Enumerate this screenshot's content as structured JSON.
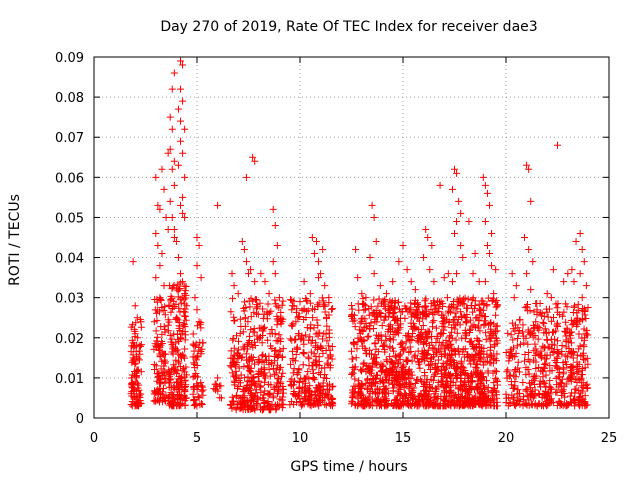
{
  "chart_data": {
    "type": "scatter",
    "title": "Day 270 of 2019, Rate Of TEC Index for receiver dae3",
    "xlabel": "GPS time / hours",
    "ylabel": "ROTI / TECUs",
    "xlim": [
      0,
      25
    ],
    "ylim": [
      0,
      0.09
    ],
    "x_ticks": [
      0,
      5,
      10,
      15,
      20,
      25
    ],
    "y_ticks": [
      0,
      0.01,
      0.02,
      0.03,
      0.04,
      0.05,
      0.06,
      0.07,
      0.08,
      0.09
    ],
    "x_tick_labels": [
      "0",
      "5",
      "10",
      "15",
      "20",
      "25"
    ],
    "y_tick_labels": [
      "0",
      "0.01",
      "0.02",
      "0.03",
      "0.04",
      "0.05",
      "0.06",
      "0.07",
      "0.08",
      "0.09"
    ],
    "grid": true,
    "marker": "+",
    "series_color": "#ff0000",
    "series": [
      {
        "name": "ROTI",
        "points": [
          [
            1.9,
            0.039
          ],
          [
            2.0,
            0.028
          ],
          [
            2.1,
            0.025
          ],
          [
            2.0,
            0.021
          ],
          [
            2.2,
            0.018
          ],
          [
            1.9,
            0.015
          ],
          [
            2.1,
            0.012
          ],
          [
            2.0,
            0.009
          ],
          [
            2.2,
            0.006
          ],
          [
            2.1,
            0.004
          ],
          [
            3.0,
            0.06
          ],
          [
            3.1,
            0.053
          ],
          [
            3.2,
            0.052
          ],
          [
            3.0,
            0.046
          ],
          [
            3.1,
            0.043
          ],
          [
            3.3,
            0.041
          ],
          [
            3.2,
            0.038
          ],
          [
            3.0,
            0.035
          ],
          [
            3.4,
            0.033
          ],
          [
            3.2,
            0.03
          ],
          [
            3.5,
            0.05
          ],
          [
            3.6,
            0.047
          ],
          [
            3.3,
            0.062
          ],
          [
            3.4,
            0.057
          ],
          [
            3.6,
            0.066
          ],
          [
            3.8,
            0.082
          ],
          [
            3.9,
            0.086
          ],
          [
            3.7,
            0.075
          ],
          [
            3.8,
            0.072
          ],
          [
            3.7,
            0.067
          ],
          [
            3.9,
            0.064
          ],
          [
            3.8,
            0.062
          ],
          [
            3.9,
            0.058
          ],
          [
            3.7,
            0.054
          ],
          [
            3.8,
            0.05
          ],
          [
            3.9,
            0.047
          ],
          [
            3.9,
            0.045
          ],
          [
            4.2,
            0.089
          ],
          [
            4.3,
            0.088
          ],
          [
            4.2,
            0.082
          ],
          [
            4.3,
            0.079
          ],
          [
            4.1,
            0.077
          ],
          [
            4.2,
            0.074
          ],
          [
            4.4,
            0.072
          ],
          [
            4.2,
            0.069
          ],
          [
            4.3,
            0.066
          ],
          [
            4.1,
            0.063
          ],
          [
            4.4,
            0.06
          ],
          [
            4.3,
            0.055
          ],
          [
            4.2,
            0.053
          ],
          [
            4.3,
            0.051
          ],
          [
            4.4,
            0.05
          ],
          [
            4.0,
            0.044
          ],
          [
            4.1,
            0.04
          ],
          [
            4.2,
            0.036
          ],
          [
            4.3,
            0.034
          ],
          [
            4.4,
            0.031
          ],
          [
            4.5,
            0.028
          ],
          [
            4.0,
            0.025
          ],
          [
            5.0,
            0.045
          ],
          [
            5.1,
            0.043
          ],
          [
            5.0,
            0.038
          ],
          [
            5.2,
            0.035
          ],
          [
            4.9,
            0.03
          ],
          [
            5.0,
            0.027
          ],
          [
            5.1,
            0.024
          ],
          [
            6.0,
            0.053
          ],
          [
            6.0,
            0.01
          ],
          [
            6.1,
            0.008
          ],
          [
            5.9,
            0.007
          ],
          [
            6.7,
            0.036
          ],
          [
            6.8,
            0.033
          ],
          [
            7.0,
            0.031
          ],
          [
            7.2,
            0.044
          ],
          [
            7.3,
            0.042
          ],
          [
            7.4,
            0.039
          ],
          [
            7.5,
            0.036
          ],
          [
            7.4,
            0.06
          ],
          [
            7.7,
            0.065
          ],
          [
            7.8,
            0.064
          ],
          [
            7.6,
            0.037
          ],
          [
            7.8,
            0.034
          ],
          [
            8.1,
            0.036
          ],
          [
            8.3,
            0.034
          ],
          [
            8.5,
            0.031
          ],
          [
            8.7,
            0.052
          ],
          [
            8.8,
            0.048
          ],
          [
            8.9,
            0.043
          ],
          [
            8.7,
            0.039
          ],
          [
            8.8,
            0.036
          ],
          [
            9.0,
            0.03
          ],
          [
            9.6,
            0.027
          ],
          [
            9.8,
            0.024
          ],
          [
            10.0,
            0.029
          ],
          [
            10.2,
            0.034
          ],
          [
            10.5,
            0.031
          ],
          [
            10.6,
            0.045
          ],
          [
            10.8,
            0.044
          ],
          [
            10.7,
            0.041
          ],
          [
            10.9,
            0.039
          ],
          [
            11.0,
            0.036
          ],
          [
            11.2,
            0.033
          ],
          [
            11.4,
            0.03
          ],
          [
            11.1,
            0.042
          ],
          [
            10.9,
            0.035
          ],
          [
            12.7,
            0.042
          ],
          [
            12.8,
            0.035
          ],
          [
            13.0,
            0.031
          ],
          [
            13.2,
            0.03
          ],
          [
            13.5,
            0.053
          ],
          [
            13.6,
            0.05
          ],
          [
            13.7,
            0.044
          ],
          [
            13.4,
            0.04
          ],
          [
            13.6,
            0.036
          ],
          [
            13.9,
            0.033
          ],
          [
            14.2,
            0.031
          ],
          [
            14.5,
            0.034
          ],
          [
            14.8,
            0.039
          ],
          [
            15.0,
            0.043
          ],
          [
            15.2,
            0.037
          ],
          [
            15.4,
            0.034
          ],
          [
            15.6,
            0.032
          ],
          [
            16.1,
            0.047
          ],
          [
            16.2,
            0.045
          ],
          [
            16.4,
            0.043
          ],
          [
            16.0,
            0.04
          ],
          [
            16.3,
            0.037
          ],
          [
            16.5,
            0.034
          ],
          [
            16.8,
            0.058
          ],
          [
            17.0,
            0.035
          ],
          [
            17.2,
            0.036
          ],
          [
            17.4,
            0.034
          ],
          [
            17.5,
            0.062
          ],
          [
            17.6,
            0.061
          ],
          [
            17.4,
            0.057
          ],
          [
            17.7,
            0.054
          ],
          [
            17.8,
            0.051
          ],
          [
            17.6,
            0.049
          ],
          [
            17.5,
            0.046
          ],
          [
            17.8,
            0.043
          ],
          [
            17.9,
            0.04
          ],
          [
            17.6,
            0.036
          ],
          [
            18.2,
            0.049
          ],
          [
            18.5,
            0.041
          ],
          [
            18.4,
            0.036
          ],
          [
            18.7,
            0.034
          ],
          [
            18.9,
            0.06
          ],
          [
            19.0,
            0.058
          ],
          [
            19.1,
            0.056
          ],
          [
            19.2,
            0.053
          ],
          [
            19.0,
            0.049
          ],
          [
            19.3,
            0.046
          ],
          [
            19.1,
            0.043
          ],
          [
            19.2,
            0.041
          ],
          [
            19.3,
            0.038
          ],
          [
            19.0,
            0.034
          ],
          [
            19.4,
            0.031
          ],
          [
            19.5,
            0.037
          ],
          [
            20.3,
            0.036
          ],
          [
            20.5,
            0.033
          ],
          [
            20.4,
            0.03
          ],
          [
            21.0,
            0.063
          ],
          [
            21.1,
            0.062
          ],
          [
            21.2,
            0.054
          ],
          [
            20.9,
            0.045
          ],
          [
            21.1,
            0.042
          ],
          [
            21.3,
            0.039
          ],
          [
            21.0,
            0.036
          ],
          [
            21.2,
            0.032
          ],
          [
            22.3,
            0.037
          ],
          [
            22.5,
            0.068
          ],
          [
            22.0,
            0.031
          ],
          [
            22.2,
            0.03
          ],
          [
            22.8,
            0.034
          ],
          [
            23.0,
            0.036
          ],
          [
            23.2,
            0.037
          ],
          [
            23.3,
            0.034
          ],
          [
            23.4,
            0.044
          ],
          [
            23.6,
            0.046
          ],
          [
            23.7,
            0.042
          ],
          [
            23.8,
            0.039
          ],
          [
            23.6,
            0.036
          ],
          [
            23.9,
            0.033
          ],
          [
            23.7,
            0.03
          ]
        ],
        "clusters": [
          {
            "x_range": [
              1.8,
              2.3
            ],
            "y_range": [
              0.003,
              0.026
            ],
            "count": 90
          },
          {
            "x_range": [
              2.9,
              3.5
            ],
            "y_range": [
              0.004,
              0.03
            ],
            "count": 100
          },
          {
            "x_range": [
              3.6,
              4.5
            ],
            "y_range": [
              0.003,
              0.034
            ],
            "count": 200
          },
          {
            "x_range": [
              4.8,
              5.3
            ],
            "y_range": [
              0.003,
              0.024
            ],
            "count": 60
          },
          {
            "x_range": [
              5.8,
              6.2
            ],
            "y_range": [
              0.005,
              0.01
            ],
            "count": 8
          },
          {
            "x_range": [
              6.6,
              9.2
            ],
            "y_range": [
              0.002,
              0.03
            ],
            "count": 380
          },
          {
            "x_range": [
              9.5,
              11.6
            ],
            "y_range": [
              0.003,
              0.03
            ],
            "count": 280
          },
          {
            "x_range": [
              12.5,
              19.6
            ],
            "y_range": [
              0.003,
              0.03
            ],
            "count": 1400
          },
          {
            "x_range": [
              20.0,
              20.7
            ],
            "y_range": [
              0.003,
              0.025
            ],
            "count": 70
          },
          {
            "x_range": [
              20.8,
              24.0
            ],
            "y_range": [
              0.003,
              0.029
            ],
            "count": 420
          }
        ]
      }
    ]
  }
}
